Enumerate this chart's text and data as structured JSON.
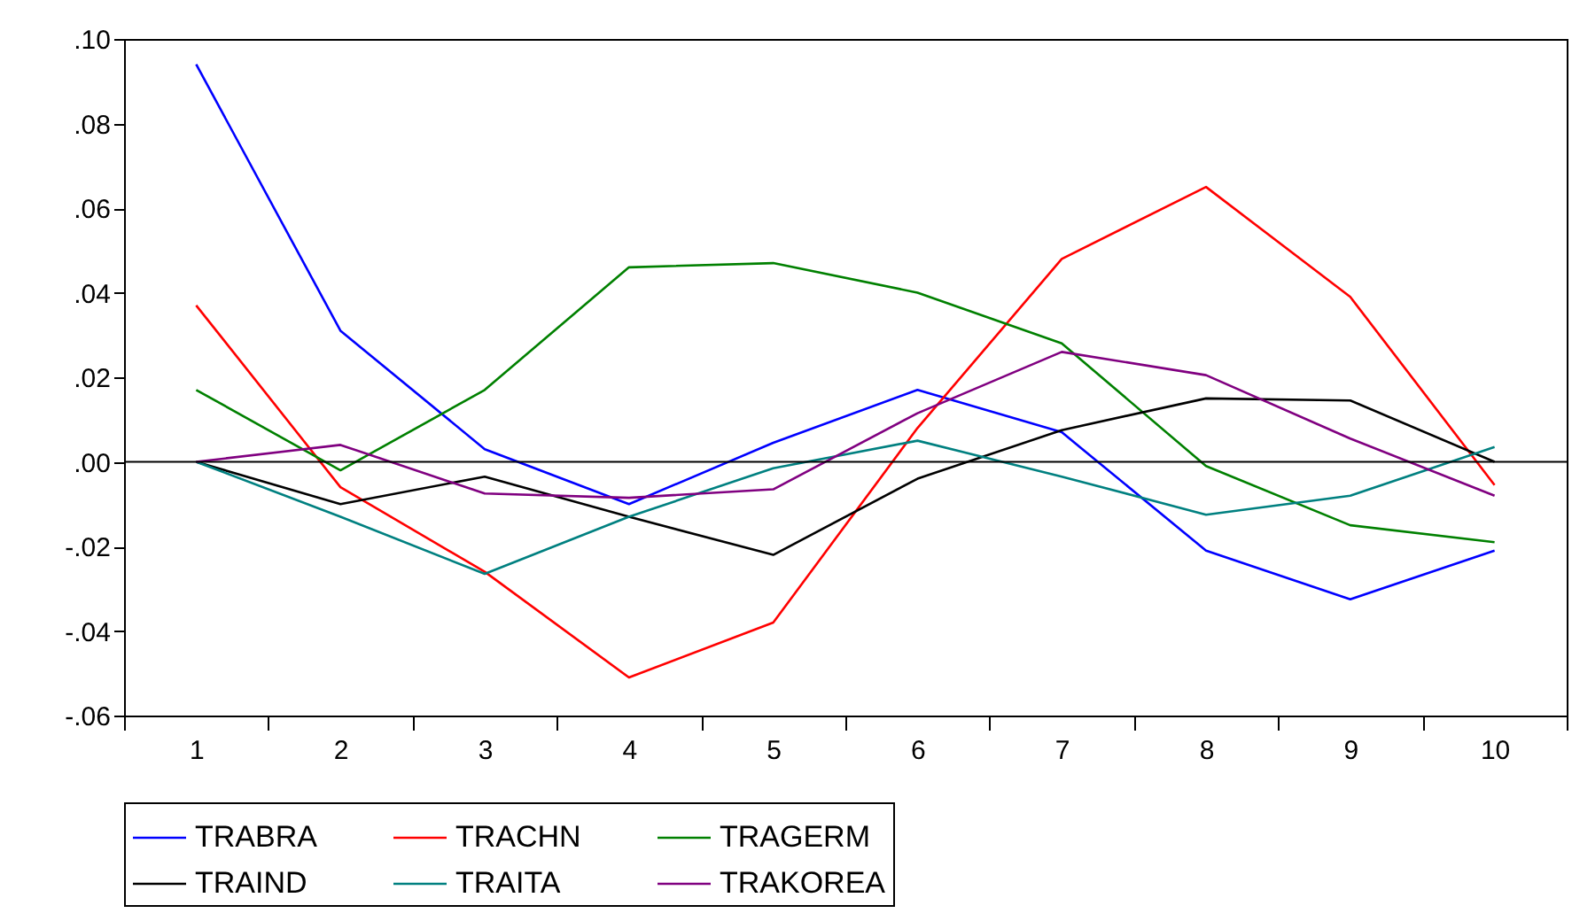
{
  "chart_data": {
    "type": "line",
    "categories": [
      "1",
      "2",
      "3",
      "4",
      "5",
      "6",
      "7",
      "8",
      "9",
      "10"
    ],
    "series": [
      {
        "name": "TRABRA",
        "color": "#0000ff",
        "values": [
          0.094,
          0.031,
          0.003,
          -0.01,
          0.0045,
          0.017,
          0.007,
          -0.021,
          -0.0325,
          -0.021
        ]
      },
      {
        "name": "TRACHN",
        "color": "#ff0000",
        "values": [
          0.037,
          -0.006,
          -0.026,
          -0.051,
          -0.038,
          0.008,
          0.048,
          0.065,
          0.039,
          -0.0055
        ]
      },
      {
        "name": "TRAGERM",
        "color": "#008000",
        "values": [
          0.017,
          -0.002,
          0.017,
          0.046,
          0.047,
          0.04,
          0.028,
          -0.001,
          -0.015,
          -0.019
        ]
      },
      {
        "name": "TRAIND",
        "color": "#000000",
        "values": [
          0.0,
          -0.01,
          -0.0035,
          -0.013,
          -0.022,
          -0.004,
          0.0075,
          0.015,
          0.0145,
          0.0
        ]
      },
      {
        "name": "TRAITA",
        "color": "#008080",
        "values": [
          0.0,
          -0.013,
          -0.0265,
          -0.013,
          -0.0015,
          0.005,
          -0.0035,
          -0.0125,
          -0.008,
          0.0035
        ]
      },
      {
        "name": "TRAKOREA",
        "color": "#800080",
        "values": [
          0.0,
          0.004,
          -0.0075,
          -0.0085,
          -0.0065,
          0.0115,
          0.026,
          0.0205,
          0.0055,
          -0.008
        ]
      }
    ],
    "ylim": [
      -0.06,
      0.1
    ],
    "yticks": [
      {
        "value": -0.06,
        "label": "-.06"
      },
      {
        "value": -0.04,
        "label": "-.04"
      },
      {
        "value": -0.02,
        "label": "-.02"
      },
      {
        "value": 0,
        "label": ".00"
      },
      {
        "value": 0.02,
        "label": ".02"
      },
      {
        "value": 0.04,
        "label": ".04"
      },
      {
        "value": 0.06,
        "label": ".06"
      },
      {
        "value": 0.08,
        "label": ".08"
      },
      {
        "value": 0.1,
        "label": ".10"
      }
    ],
    "ref_lines": [
      {
        "axis": "y",
        "value": 0,
        "color": "#000000"
      }
    ],
    "grid": false,
    "legend": "bottom",
    "line_style": "solid"
  }
}
